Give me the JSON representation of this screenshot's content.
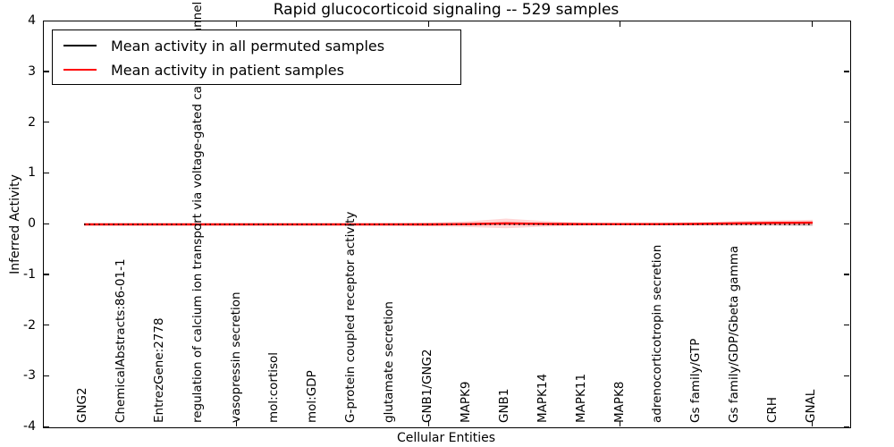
{
  "chart_data": {
    "type": "line",
    "title": "Rapid glucocorticoid signaling -- 529 samples",
    "xlabel": "Cellular Entities",
    "ylabel": "Inferred Activity",
    "ylim": [
      -4,
      4
    ],
    "yticks": [
      "4",
      "3",
      "2",
      "1",
      "0",
      "-1",
      "-2",
      "-3",
      "-4"
    ],
    "ytick_values": [
      4,
      3,
      2,
      1,
      0,
      -1,
      -2,
      -3,
      -4
    ],
    "xtick_major_indices": [
      4,
      9,
      14,
      19
    ],
    "grid": false,
    "categories": [
      "GNG2",
      "ChemicalAbstracts:86-01-1",
      "EntrezGene:2778",
      "regulation of calcium ion transport via voltage-gated calcium channel activity",
      "vasopressin secretion",
      "mol:cortisol",
      "mol:GDP",
      "G-protein coupled receptor activity",
      "glutamate secretion",
      "GNB1/GNG2",
      "MAPK9",
      "GNB1",
      "MAPK14",
      "MAPK11",
      "MAPK8",
      "adrenocorticotropin secretion",
      "Gs family/GTP",
      "Gs family/GDP/Gbeta gamma",
      "CRH",
      "GNAL"
    ],
    "series": [
      {
        "name": "Mean activity in all permuted samples",
        "color": "#000000",
        "linestyle": "dotted-overlay",
        "values": [
          0,
          0,
          0,
          0,
          0,
          0,
          0,
          0,
          0,
          0,
          0,
          0,
          0,
          0,
          0,
          0,
          0,
          0,
          0,
          0
        ],
        "band_halfwidth": [
          0.012,
          0.012,
          0.012,
          0.012,
          0.012,
          0.012,
          0.012,
          0.012,
          0.012,
          0.012,
          0.012,
          0.012,
          0.012,
          0.012,
          0.012,
          0.012,
          0.015,
          0.02,
          0.025,
          0.03
        ],
        "band_color": "rgba(130,130,130,0.35)"
      },
      {
        "name": "Mean activity in patient samples",
        "color": "#ff0000",
        "linestyle": "solid",
        "values": [
          0,
          0,
          0,
          0,
          0,
          0,
          0,
          0,
          0,
          0,
          0.005,
          0.02,
          0.01,
          0.005,
          0.005,
          0.005,
          0.01,
          0.02,
          0.03,
          0.035
        ],
        "band_halfwidth": [
          0.015,
          0.015,
          0.015,
          0.015,
          0.015,
          0.015,
          0.015,
          0.018,
          0.022,
          0.035,
          0.055,
          0.095,
          0.055,
          0.03,
          0.022,
          0.025,
          0.032,
          0.045,
          0.05,
          0.055
        ],
        "band_color": "rgba(255,0,0,0.16)"
      }
    ],
    "legend": {
      "position": "upper left",
      "entries": [
        {
          "label": "Mean activity in all permuted samples",
          "color": "#000000"
        },
        {
          "label": "Mean activity in patient samples",
          "color": "#ff0000"
        }
      ]
    }
  },
  "colors": {
    "background": "#ffffff",
    "axis": "#000000",
    "patient_line": "#ff0000",
    "permuted_line": "#000000"
  }
}
